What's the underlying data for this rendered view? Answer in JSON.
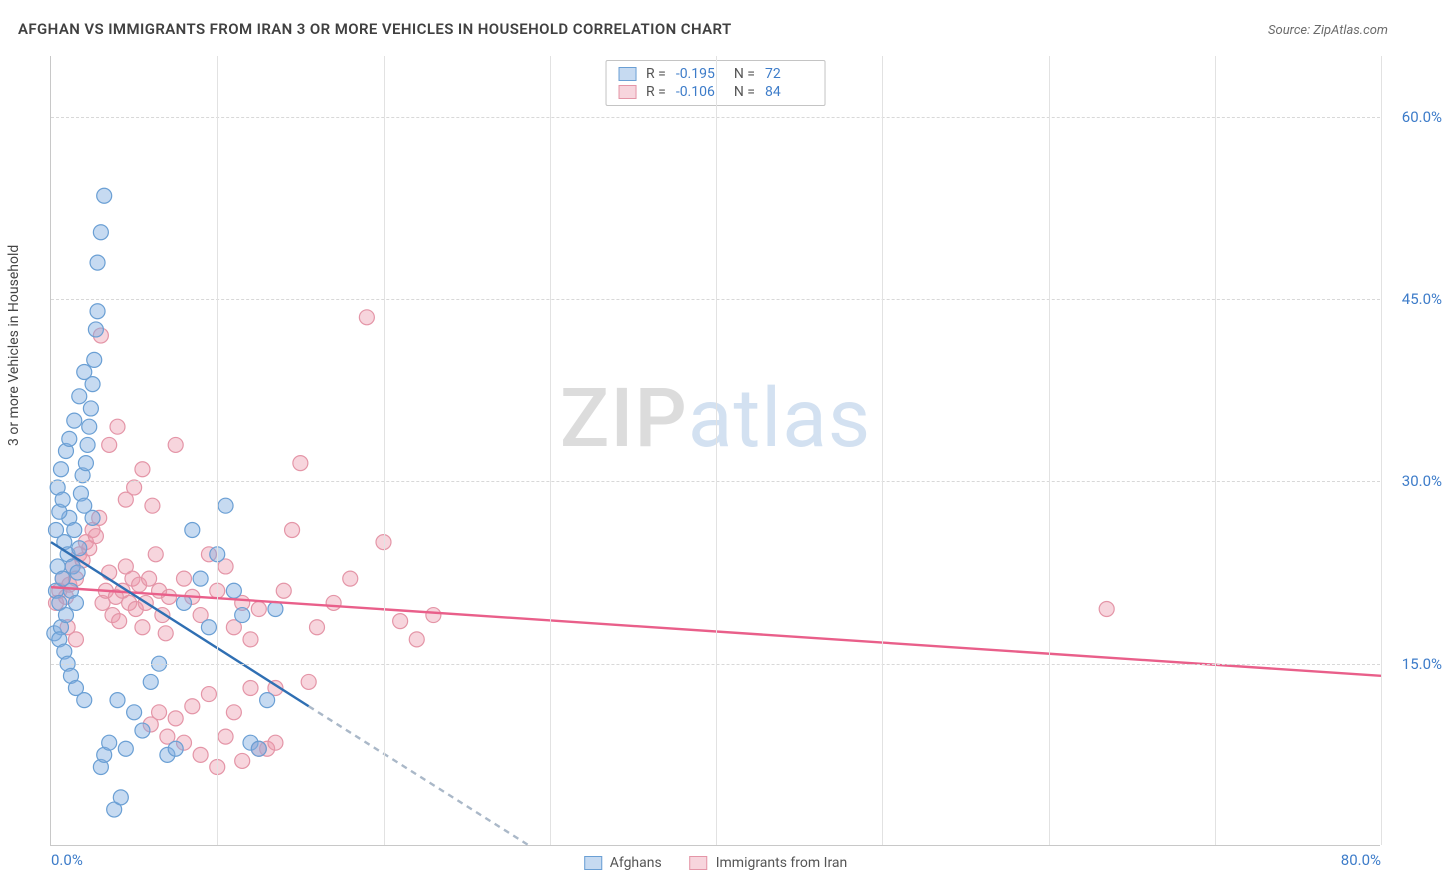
{
  "title": "AFGHAN VS IMMIGRANTS FROM IRAN 3 OR MORE VEHICLES IN HOUSEHOLD CORRELATION CHART",
  "source_label": "Source: ZipAtlas.com",
  "ylabel": "3 or more Vehicles in Household",
  "watermark": {
    "part1": "ZIP",
    "part2": "atlas"
  },
  "colors": {
    "axis_text": "#3d7cc9",
    "grid": "#d8d8d8",
    "series_a_fill": "rgba(129,172,223,0.45)",
    "series_a_stroke": "#6a9fd4",
    "series_b_fill": "rgba(235,150,170,0.40)",
    "series_b_stroke": "#e495a7",
    "trend_a": "#2f6fb3",
    "trend_b": "#e95f8a",
    "trend_dash": "#aab8c8"
  },
  "xaxis": {
    "min": 0,
    "max": 80,
    "ticks": [
      0,
      10,
      20,
      30,
      40,
      50,
      60,
      70,
      80
    ],
    "tick_labels": {
      "0": "0.0%",
      "80": "80.0%"
    }
  },
  "yaxis": {
    "min": 0,
    "max": 65,
    "ticks": [
      15,
      30,
      45,
      60
    ],
    "tick_labels": {
      "15": "15.0%",
      "30": "30.0%",
      "45": "45.0%",
      "60": "60.0%"
    }
  },
  "stats": [
    {
      "series": "a",
      "R_label": "R =",
      "R": "-0.195",
      "N_label": "N =",
      "N": "72"
    },
    {
      "series": "b",
      "R_label": "R =",
      "R": "-0.106",
      "N_label": "N =",
      "N": "84"
    }
  ],
  "legend": [
    {
      "series": "a",
      "label": "Afghans"
    },
    {
      "series": "b",
      "label": "Immigrants from Iran"
    }
  ],
  "trend_lines": {
    "a_solid": {
      "x1": 0,
      "y1": 25.0,
      "x2": 15.5,
      "y2": 11.5
    },
    "a_dashed": {
      "x1": 15.5,
      "y1": 11.5,
      "x2": 28.8,
      "y2": 0
    },
    "b_solid": {
      "x1": 0,
      "y1": 21.3,
      "x2": 80,
      "y2": 14.0
    }
  },
  "marker_radius": 7.5,
  "series_a_points": [
    [
      0.2,
      17.5
    ],
    [
      0.3,
      21
    ],
    [
      0.4,
      23
    ],
    [
      0.5,
      20
    ],
    [
      0.6,
      18
    ],
    [
      0.7,
      22
    ],
    [
      0.8,
      25
    ],
    [
      0.9,
      19
    ],
    [
      1.0,
      24
    ],
    [
      1.1,
      27
    ],
    [
      1.2,
      21
    ],
    [
      1.3,
      23
    ],
    [
      1.4,
      26
    ],
    [
      1.5,
      20
    ],
    [
      1.6,
      22.5
    ],
    [
      1.7,
      24.5
    ],
    [
      1.8,
      29
    ],
    [
      1.9,
      30.5
    ],
    [
      2.0,
      28
    ],
    [
      2.1,
      31.5
    ],
    [
      2.2,
      33
    ],
    [
      2.3,
      34.5
    ],
    [
      2.4,
      36
    ],
    [
      2.5,
      38
    ],
    [
      2.6,
      40
    ],
    [
      2.7,
      42.5
    ],
    [
      2.8,
      48
    ],
    [
      3.0,
      50.5
    ],
    [
      3.2,
      53.5
    ],
    [
      0.5,
      17
    ],
    [
      0.8,
      16
    ],
    [
      1.0,
      15
    ],
    [
      1.2,
      14
    ],
    [
      1.5,
      13
    ],
    [
      2.0,
      12
    ],
    [
      2.5,
      27
    ],
    [
      3.0,
      6.5
    ],
    [
      3.2,
      7.5
    ],
    [
      3.5,
      8.5
    ],
    [
      4.0,
      12
    ],
    [
      4.5,
      8.0
    ],
    [
      5.0,
      11
    ],
    [
      5.5,
      9.5
    ],
    [
      6.0,
      13.5
    ],
    [
      6.5,
      15
    ],
    [
      7.0,
      7.5
    ],
    [
      7.5,
      8.0
    ],
    [
      8.0,
      20
    ],
    [
      8.5,
      26
    ],
    [
      9.0,
      22
    ],
    [
      9.5,
      18
    ],
    [
      10.0,
      24
    ],
    [
      10.5,
      28
    ],
    [
      11.0,
      21
    ],
    [
      11.5,
      19
    ],
    [
      12.0,
      8.5
    ],
    [
      12.5,
      8.0
    ],
    [
      13.0,
      12
    ],
    [
      13.5,
      19.5
    ],
    [
      3.8,
      3.0
    ],
    [
      4.2,
      4.0
    ],
    [
      2.8,
      44
    ],
    [
      0.4,
      29.5
    ],
    [
      0.6,
      31
    ],
    [
      0.9,
      32.5
    ],
    [
      1.1,
      33.5
    ],
    [
      1.4,
      35
    ],
    [
      1.7,
      37
    ],
    [
      2.0,
      39
    ],
    [
      0.3,
      26
    ],
    [
      0.5,
      27.5
    ],
    [
      0.7,
      28.5
    ]
  ],
  "series_b_points": [
    [
      0.3,
      20
    ],
    [
      0.5,
      21
    ],
    [
      0.7,
      22
    ],
    [
      0.9,
      20.5
    ],
    [
      1.1,
      21.5
    ],
    [
      1.3,
      23
    ],
    [
      1.5,
      22
    ],
    [
      1.7,
      24
    ],
    [
      1.9,
      23.5
    ],
    [
      2.1,
      25
    ],
    [
      2.3,
      24.5
    ],
    [
      2.5,
      26
    ],
    [
      2.7,
      25.5
    ],
    [
      2.9,
      27
    ],
    [
      3.1,
      20
    ],
    [
      3.3,
      21
    ],
    [
      3.5,
      22.5
    ],
    [
      3.7,
      19
    ],
    [
      3.9,
      20.5
    ],
    [
      4.1,
      18.5
    ],
    [
      4.3,
      21
    ],
    [
      4.5,
      23
    ],
    [
      4.7,
      20
    ],
    [
      4.9,
      22
    ],
    [
      5.1,
      19.5
    ],
    [
      5.3,
      21.5
    ],
    [
      5.5,
      18
    ],
    [
      5.7,
      20
    ],
    [
      5.9,
      22
    ],
    [
      6.1,
      28
    ],
    [
      6.3,
      24
    ],
    [
      6.5,
      21
    ],
    [
      6.7,
      19
    ],
    [
      6.9,
      17.5
    ],
    [
      7.1,
      20.5
    ],
    [
      7.5,
      33
    ],
    [
      8.0,
      22
    ],
    [
      8.5,
      20.5
    ],
    [
      9.0,
      19
    ],
    [
      9.5,
      24
    ],
    [
      10.0,
      21
    ],
    [
      10.5,
      23
    ],
    [
      11.0,
      18
    ],
    [
      11.5,
      20
    ],
    [
      12.0,
      17
    ],
    [
      12.5,
      19.5
    ],
    [
      13.0,
      8.0
    ],
    [
      13.5,
      13
    ],
    [
      14.0,
      21
    ],
    [
      14.5,
      26
    ],
    [
      15.0,
      31.5
    ],
    [
      15.5,
      13.5
    ],
    [
      16.0,
      18
    ],
    [
      17.0,
      20
    ],
    [
      18.0,
      22
    ],
    [
      19.0,
      43.5
    ],
    [
      20.0,
      25
    ],
    [
      21.0,
      18.5
    ],
    [
      22.0,
      17
    ],
    [
      23.0,
      19
    ],
    [
      3.0,
      42
    ],
    [
      3.5,
      33
    ],
    [
      4.0,
      34.5
    ],
    [
      4.5,
      28.5
    ],
    [
      5.0,
      29.5
    ],
    [
      5.5,
      31
    ],
    [
      6.0,
      10
    ],
    [
      6.5,
      11
    ],
    [
      7.0,
      9
    ],
    [
      7.5,
      10.5
    ],
    [
      8.0,
      8.5
    ],
    [
      8.5,
      11.5
    ],
    [
      9.0,
      7.5
    ],
    [
      9.5,
      12.5
    ],
    [
      10.0,
      6.5
    ],
    [
      10.5,
      9.0
    ],
    [
      11.0,
      11
    ],
    [
      11.5,
      7.0
    ],
    [
      12.0,
      13
    ],
    [
      12.5,
      8.0
    ],
    [
      13.5,
      8.5
    ],
    [
      63.5,
      19.5
    ],
    [
      1.0,
      18
    ],
    [
      1.5,
      17
    ]
  ]
}
